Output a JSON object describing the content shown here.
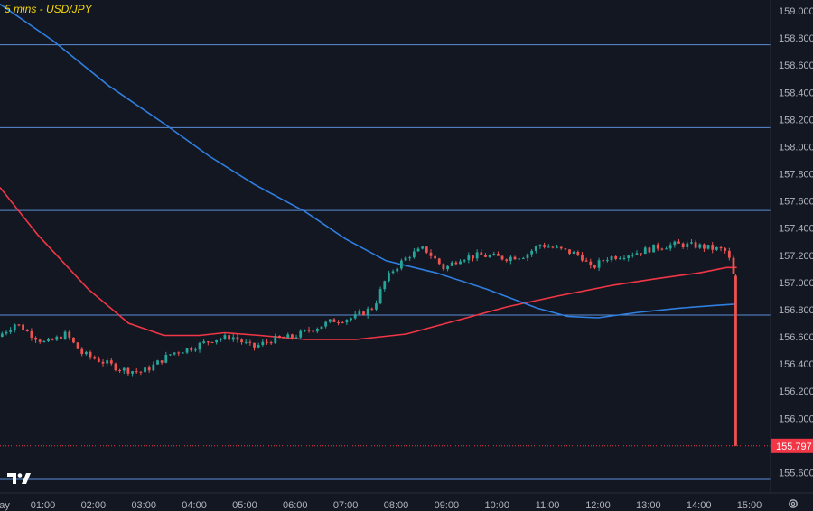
{
  "window": {
    "title": "5 mins - USD/JPY",
    "logo": "tradingview-logo-icon",
    "settings": "gear-icon"
  },
  "colors": {
    "background": "#131722",
    "axis_text": "#b2b5be",
    "hline": "#5b8dd6",
    "ma_red": "#f23645",
    "ma_blue": "#2f7fe0",
    "up": "#26a69a",
    "down": "#ef5350",
    "price_tag": "#f23645",
    "title": "#f5d90a"
  },
  "chart_data": {
    "type": "candlestick",
    "title": "5 mins - USD/JPY",
    "xlabel": "",
    "ylabel": "",
    "x_ticks": [
      "ay",
      "01:00",
      "02:00",
      "03:00",
      "04:00",
      "05:00",
      "06:00",
      "07:00",
      "08:00",
      "09:00",
      "10:00",
      "11:00",
      "12:00",
      "13:00",
      "14:00",
      "15:00"
    ],
    "x_tick_hours": [
      0.24,
      1,
      2,
      3,
      4,
      5,
      6,
      7,
      8,
      9,
      10,
      11,
      12,
      13,
      14,
      15
    ],
    "xlim_hours": [
      0.15,
      15.42
    ],
    "y_ticks": [
      "159.000",
      "158.800",
      "158.600",
      "158.400",
      "158.200",
      "158.000",
      "157.800",
      "157.600",
      "157.400",
      "157.200",
      "157.000",
      "156.800",
      "156.600",
      "156.400",
      "156.200",
      "156.000",
      "155.600"
    ],
    "ylim": [
      155.45,
      159.08
    ],
    "horizontal_levels": [
      158.75,
      158.14,
      157.53,
      156.76,
      155.55
    ],
    "last_price": 155.797,
    "last_price_label": "155.797",
    "grid": false,
    "candle_step_hours": 0.0833,
    "price_path": [
      [
        0.15,
        156.6
      ],
      [
        0.5,
        156.7
      ],
      [
        0.8,
        156.62
      ],
      [
        1.1,
        156.55
      ],
      [
        1.5,
        156.62
      ],
      [
        1.8,
        156.48
      ],
      [
        2.2,
        156.42
      ],
      [
        2.6,
        156.36
      ],
      [
        3.0,
        156.34
      ],
      [
        3.2,
        156.38
      ],
      [
        3.6,
        156.48
      ],
      [
        4.0,
        156.52
      ],
      [
        4.4,
        156.58
      ],
      [
        4.8,
        156.6
      ],
      [
        5.2,
        156.52
      ],
      [
        5.6,
        156.58
      ],
      [
        6.0,
        156.6
      ],
      [
        6.4,
        156.66
      ],
      [
        6.8,
        156.72
      ],
      [
        7.2,
        156.74
      ],
      [
        7.6,
        156.82
      ],
      [
        7.8,
        157.0
      ],
      [
        8.0,
        157.1
      ],
      [
        8.3,
        157.2
      ],
      [
        8.6,
        157.25
      ],
      [
        9.0,
        157.1
      ],
      [
        9.3,
        157.18
      ],
      [
        9.7,
        157.2
      ],
      [
        10.2,
        157.18
      ],
      [
        10.6,
        157.2
      ],
      [
        10.9,
        157.28
      ],
      [
        11.3,
        157.24
      ],
      [
        11.7,
        157.2
      ],
      [
        11.9,
        157.1
      ],
      [
        12.2,
        157.18
      ],
      [
        12.5,
        157.2
      ],
      [
        12.8,
        157.22
      ],
      [
        13.2,
        157.26
      ],
      [
        13.6,
        157.28
      ],
      [
        14.0,
        157.27
      ],
      [
        14.3,
        157.25
      ],
      [
        14.5,
        157.24
      ],
      [
        14.62,
        157.22
      ],
      [
        14.7,
        157.05
      ]
    ],
    "final_candle": {
      "hour": 14.73,
      "open": 157.05,
      "high": 157.06,
      "low": 155.797,
      "close": 155.797
    },
    "series": [
      {
        "type": "line",
        "color": "#f23645",
        "points": [
          [
            0.15,
            157.7
          ],
          [
            0.9,
            157.35
          ],
          [
            1.9,
            156.95
          ],
          [
            2.7,
            156.7
          ],
          [
            3.4,
            156.61
          ],
          [
            4.1,
            156.61
          ],
          [
            4.6,
            156.63
          ],
          [
            5.3,
            156.61
          ],
          [
            6.2,
            156.58
          ],
          [
            7.2,
            156.58
          ],
          [
            8.2,
            156.62
          ],
          [
            9.2,
            156.72
          ],
          [
            10.2,
            156.82
          ],
          [
            11.2,
            156.9
          ],
          [
            12.3,
            156.98
          ],
          [
            13.2,
            157.03
          ],
          [
            14.0,
            157.07
          ],
          [
            14.55,
            157.11
          ],
          [
            14.75,
            157.11
          ]
        ]
      },
      {
        "type": "line",
        "color": "#2f7fe0",
        "points": [
          [
            0.15,
            159.05
          ],
          [
            1.2,
            158.78
          ],
          [
            2.3,
            158.45
          ],
          [
            3.4,
            158.17
          ],
          [
            4.3,
            157.93
          ],
          [
            5.2,
            157.72
          ],
          [
            6.2,
            157.52
          ],
          [
            7.0,
            157.32
          ],
          [
            7.8,
            157.16
          ],
          [
            8.8,
            157.07
          ],
          [
            9.8,
            156.95
          ],
          [
            10.8,
            156.81
          ],
          [
            11.4,
            156.75
          ],
          [
            12.0,
            156.74
          ],
          [
            12.8,
            156.78
          ],
          [
            13.6,
            156.81
          ],
          [
            14.3,
            156.83
          ],
          [
            14.7,
            156.84
          ]
        ]
      }
    ]
  }
}
